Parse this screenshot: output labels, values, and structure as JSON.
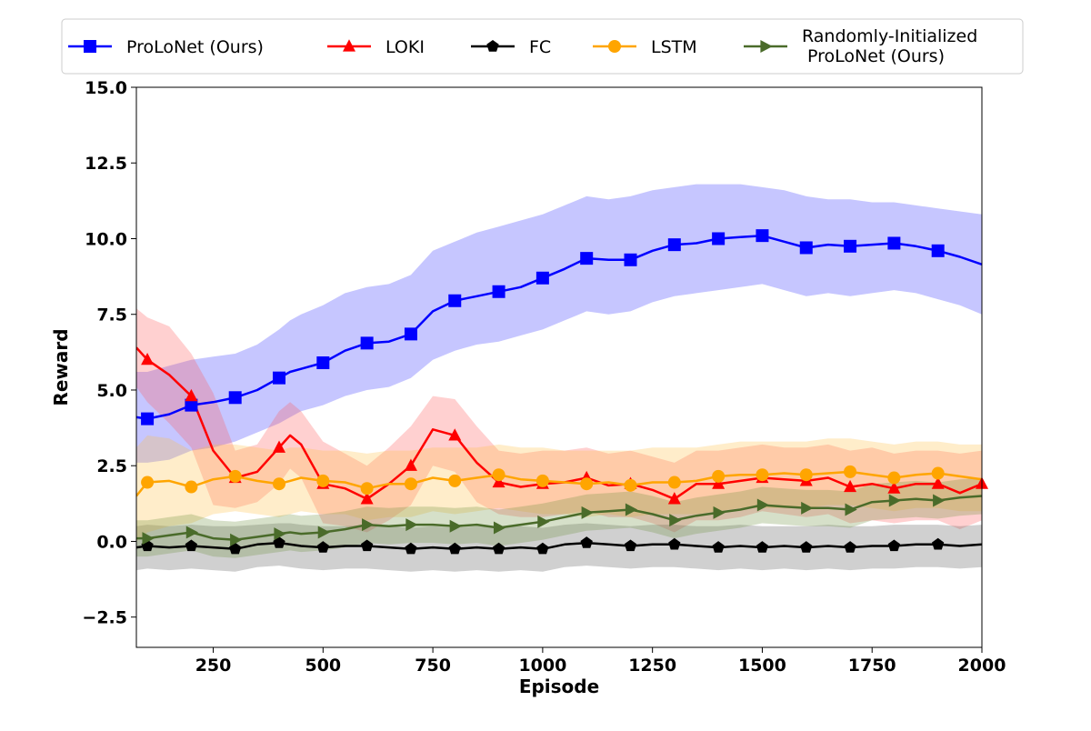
{
  "chart_data": {
    "type": "line",
    "title": "",
    "xlabel": "Episode",
    "ylabel": "Reward",
    "xlim": [
      75,
      2000
    ],
    "ylim": [
      -3.5,
      15.0
    ],
    "xticks": [
      250,
      500,
      750,
      1000,
      1250,
      1500,
      1750,
      2000
    ],
    "xtick_labels": [
      "250",
      "500",
      "750",
      "1000",
      "1250",
      "1500",
      "1750",
      "2000"
    ],
    "yticks": [
      -2.5,
      0.0,
      2.5,
      5.0,
      7.5,
      10.0,
      12.5,
      15.0
    ],
    "ytick_labels": [
      "−2.5",
      "0.0",
      "2.5",
      "5.0",
      "7.5",
      "10.0",
      "12.5",
      "15.0"
    ],
    "grid": false,
    "legend_position": "top",
    "x": [
      75,
      100,
      150,
      200,
      250,
      300,
      350,
      400,
      425,
      450,
      500,
      550,
      600,
      650,
      700,
      750,
      800,
      850,
      900,
      950,
      1000,
      1050,
      1100,
      1150,
      1200,
      1250,
      1300,
      1350,
      1400,
      1450,
      1500,
      1550,
      1600,
      1650,
      1700,
      1750,
      1800,
      1850,
      1900,
      1950,
      2000
    ],
    "series": [
      {
        "name": "ProLoNet (Ours)",
        "color": "#0000ff",
        "band_color": "#3333ff",
        "marker": "square",
        "values": [
          4.1,
          4.05,
          4.2,
          4.5,
          4.6,
          4.75,
          5.0,
          5.4,
          5.6,
          5.7,
          5.9,
          6.3,
          6.55,
          6.6,
          6.85,
          7.6,
          7.95,
          8.1,
          8.25,
          8.4,
          8.7,
          9.0,
          9.35,
          9.3,
          9.3,
          9.6,
          9.8,
          9.85,
          10.0,
          10.05,
          10.1,
          9.9,
          9.7,
          9.8,
          9.75,
          9.8,
          9.85,
          9.75,
          9.6,
          9.4,
          9.15
        ],
        "upper": [
          5.6,
          5.6,
          5.8,
          6.0,
          6.1,
          6.2,
          6.5,
          7.0,
          7.3,
          7.5,
          7.8,
          8.2,
          8.4,
          8.5,
          8.8,
          9.6,
          9.9,
          10.2,
          10.4,
          10.6,
          10.8,
          11.1,
          11.4,
          11.3,
          11.4,
          11.6,
          11.7,
          11.8,
          11.8,
          11.8,
          11.7,
          11.6,
          11.4,
          11.3,
          11.3,
          11.2,
          11.2,
          11.1,
          11.0,
          10.9,
          10.8
        ],
        "lower": [
          2.6,
          2.6,
          2.7,
          3.0,
          3.1,
          3.3,
          3.6,
          3.9,
          4.1,
          4.3,
          4.5,
          4.8,
          5.0,
          5.1,
          5.4,
          6.0,
          6.3,
          6.5,
          6.6,
          6.8,
          7.0,
          7.3,
          7.6,
          7.5,
          7.6,
          7.9,
          8.1,
          8.2,
          8.3,
          8.4,
          8.5,
          8.3,
          8.1,
          8.2,
          8.1,
          8.2,
          8.3,
          8.2,
          8.0,
          7.8,
          7.5
        ],
        "marker_x": [
          100,
          200,
          300,
          400,
          500,
          600,
          700,
          800,
          900,
          1000,
          1100,
          1200,
          1300,
          1400,
          1500,
          1600,
          1700,
          1800,
          1900
        ]
      },
      {
        "name": "LOKI",
        "color": "#ff0000",
        "band_color": "#ff5555",
        "marker": "triangle",
        "values": [
          6.4,
          6.0,
          5.5,
          4.8,
          3.0,
          2.1,
          2.3,
          3.1,
          3.5,
          3.2,
          1.9,
          1.75,
          1.4,
          1.9,
          2.5,
          3.7,
          3.5,
          2.6,
          1.95,
          1.8,
          1.9,
          1.95,
          2.1,
          1.85,
          1.9,
          1.7,
          1.4,
          1.9,
          1.9,
          2.0,
          2.1,
          2.05,
          2.0,
          2.1,
          1.8,
          1.9,
          1.75,
          1.9,
          1.9,
          1.6,
          1.9
        ],
        "upper": [
          7.7,
          7.4,
          7.1,
          6.2,
          4.9,
          3.0,
          3.2,
          4.3,
          4.6,
          4.3,
          3.3,
          2.9,
          2.5,
          3.1,
          3.8,
          4.8,
          4.7,
          3.8,
          3.0,
          2.9,
          3.0,
          3.0,
          3.1,
          2.9,
          3.0,
          2.8,
          2.6,
          3.0,
          3.0,
          3.1,
          3.2,
          3.1,
          3.1,
          3.2,
          3.0,
          3.1,
          2.9,
          3.0,
          3.0,
          2.9,
          3.0
        ],
        "lower": [
          5.1,
          4.6,
          3.9,
          3.1,
          1.2,
          1.1,
          1.3,
          1.9,
          2.4,
          2.1,
          0.6,
          0.5,
          0.3,
          0.7,
          1.2,
          2.5,
          2.3,
          1.3,
          0.9,
          0.8,
          0.8,
          0.9,
          1.0,
          0.8,
          0.8,
          0.6,
          0.3,
          0.7,
          0.7,
          0.8,
          1.0,
          0.9,
          0.8,
          0.9,
          0.6,
          0.7,
          0.6,
          0.7,
          0.7,
          0.4,
          0.7
        ],
        "marker_x": [
          100,
          200,
          300,
          400,
          500,
          600,
          700,
          800,
          900,
          1000,
          1100,
          1200,
          1300,
          1400,
          1500,
          1600,
          1700,
          1800,
          1900,
          2000
        ]
      },
      {
        "name": "FC",
        "color": "#000000",
        "band_color": "#555555",
        "marker": "pentagon",
        "values": [
          -0.2,
          -0.15,
          -0.2,
          -0.15,
          -0.2,
          -0.25,
          -0.1,
          -0.05,
          -0.1,
          -0.15,
          -0.2,
          -0.15,
          -0.15,
          -0.2,
          -0.25,
          -0.2,
          -0.25,
          -0.2,
          -0.25,
          -0.2,
          -0.25,
          -0.1,
          -0.05,
          -0.1,
          -0.15,
          -0.1,
          -0.1,
          -0.15,
          -0.2,
          -0.15,
          -0.2,
          -0.15,
          -0.2,
          -0.15,
          -0.2,
          -0.15,
          -0.15,
          -0.1,
          -0.1,
          -0.15,
          -0.1
        ],
        "upper": [
          0.5,
          0.55,
          0.5,
          0.55,
          0.5,
          0.5,
          0.55,
          0.6,
          0.6,
          0.55,
          0.5,
          0.5,
          0.55,
          0.5,
          0.45,
          0.5,
          0.45,
          0.5,
          0.45,
          0.5,
          0.45,
          0.55,
          0.6,
          0.55,
          0.5,
          0.55,
          0.55,
          0.5,
          0.5,
          0.55,
          0.5,
          0.5,
          0.5,
          0.55,
          0.5,
          0.5,
          0.55,
          0.55,
          0.55,
          0.5,
          0.55
        ],
        "lower": [
          -0.95,
          -0.9,
          -0.95,
          -0.9,
          -0.95,
          -1.0,
          -0.85,
          -0.8,
          -0.85,
          -0.9,
          -0.95,
          -0.9,
          -0.9,
          -0.95,
          -1.0,
          -0.95,
          -1.0,
          -0.95,
          -1.0,
          -0.95,
          -1.0,
          -0.85,
          -0.8,
          -0.85,
          -0.9,
          -0.85,
          -0.85,
          -0.9,
          -0.95,
          -0.9,
          -0.95,
          -0.9,
          -0.95,
          -0.9,
          -0.95,
          -0.9,
          -0.9,
          -0.85,
          -0.85,
          -0.9,
          -0.85
        ],
        "marker_x": [
          100,
          200,
          300,
          400,
          500,
          600,
          700,
          800,
          900,
          1000,
          1100,
          1200,
          1300,
          1400,
          1500,
          1600,
          1700,
          1800,
          1900
        ]
      },
      {
        "name": "LSTM",
        "color": "#ffa500",
        "band_color": "#ffbf40",
        "marker": "circle",
        "values": [
          1.5,
          1.95,
          2.0,
          1.8,
          2.05,
          2.15,
          2.0,
          1.9,
          2.0,
          2.1,
          2.0,
          1.95,
          1.75,
          1.9,
          1.9,
          2.1,
          2.0,
          2.1,
          2.2,
          2.05,
          2.0,
          1.95,
          1.9,
          1.95,
          1.85,
          1.95,
          1.95,
          2.0,
          2.15,
          2.2,
          2.2,
          2.25,
          2.2,
          2.25,
          2.3,
          2.2,
          2.1,
          2.2,
          2.25,
          2.15,
          2.05
        ],
        "upper": [
          3.1,
          3.5,
          3.4,
          3.0,
          3.2,
          3.2,
          3.1,
          3.0,
          3.1,
          3.1,
          3.0,
          3.0,
          2.9,
          3.0,
          3.0,
          3.1,
          3.1,
          3.1,
          3.2,
          3.1,
          3.1,
          3.0,
          3.0,
          3.0,
          3.0,
          3.1,
          3.1,
          3.1,
          3.2,
          3.3,
          3.3,
          3.3,
          3.3,
          3.4,
          3.4,
          3.3,
          3.2,
          3.3,
          3.3,
          3.2,
          3.2
        ],
        "lower": [
          0.0,
          0.3,
          0.5,
          0.6,
          0.9,
          1.0,
          0.9,
          0.8,
          0.9,
          1.0,
          0.9,
          0.9,
          0.7,
          0.8,
          0.8,
          1.0,
          0.9,
          1.0,
          1.1,
          1.0,
          0.9,
          0.9,
          0.8,
          0.9,
          0.8,
          0.9,
          0.9,
          0.9,
          1.0,
          1.1,
          1.1,
          1.1,
          1.1,
          1.2,
          1.2,
          1.1,
          1.0,
          1.1,
          1.1,
          1.0,
          1.0
        ],
        "marker_x": [
          100,
          200,
          300,
          400,
          500,
          600,
          700,
          800,
          900,
          1000,
          1100,
          1200,
          1300,
          1400,
          1500,
          1600,
          1700,
          1800,
          1900
        ]
      },
      {
        "name": "Randomly-Initialized\n ProLoNet (Ours)",
        "color": "#4a6b2a",
        "band_color": "#6b8e3d",
        "marker": "triangle-right",
        "values": [
          0.1,
          0.1,
          0.2,
          0.3,
          0.1,
          0.05,
          0.15,
          0.25,
          0.3,
          0.25,
          0.3,
          0.4,
          0.55,
          0.5,
          0.55,
          0.55,
          0.5,
          0.55,
          0.45,
          0.55,
          0.65,
          0.8,
          0.95,
          1.0,
          1.05,
          0.9,
          0.7,
          0.85,
          0.95,
          1.05,
          1.2,
          1.15,
          1.1,
          1.1,
          1.05,
          1.3,
          1.35,
          1.4,
          1.35,
          1.45,
          1.5
        ],
        "upper": [
          0.7,
          0.7,
          0.8,
          0.9,
          0.7,
          0.65,
          0.75,
          0.85,
          0.9,
          0.85,
          0.9,
          1.0,
          1.15,
          1.1,
          1.15,
          1.15,
          1.1,
          1.15,
          1.05,
          1.15,
          1.25,
          1.4,
          1.55,
          1.6,
          1.65,
          1.5,
          1.3,
          1.45,
          1.55,
          1.65,
          1.8,
          1.75,
          1.7,
          1.7,
          1.65,
          1.9,
          1.95,
          2.0,
          1.95,
          2.05,
          2.1
        ],
        "lower": [
          -0.5,
          -0.5,
          -0.4,
          -0.3,
          -0.5,
          -0.55,
          -0.45,
          -0.35,
          -0.3,
          -0.35,
          -0.3,
          -0.2,
          -0.05,
          -0.1,
          -0.05,
          -0.05,
          -0.1,
          -0.05,
          -0.15,
          -0.05,
          0.05,
          0.2,
          0.35,
          0.4,
          0.45,
          0.3,
          0.1,
          0.25,
          0.35,
          0.45,
          0.6,
          0.55,
          0.5,
          0.5,
          0.45,
          0.7,
          0.75,
          0.8,
          0.75,
          0.85,
          0.9
        ],
        "marker_x": [
          100,
          200,
          300,
          400,
          500,
          600,
          700,
          800,
          900,
          1000,
          1100,
          1200,
          1300,
          1400,
          1500,
          1600,
          1700,
          1800,
          1900
        ]
      }
    ]
  }
}
